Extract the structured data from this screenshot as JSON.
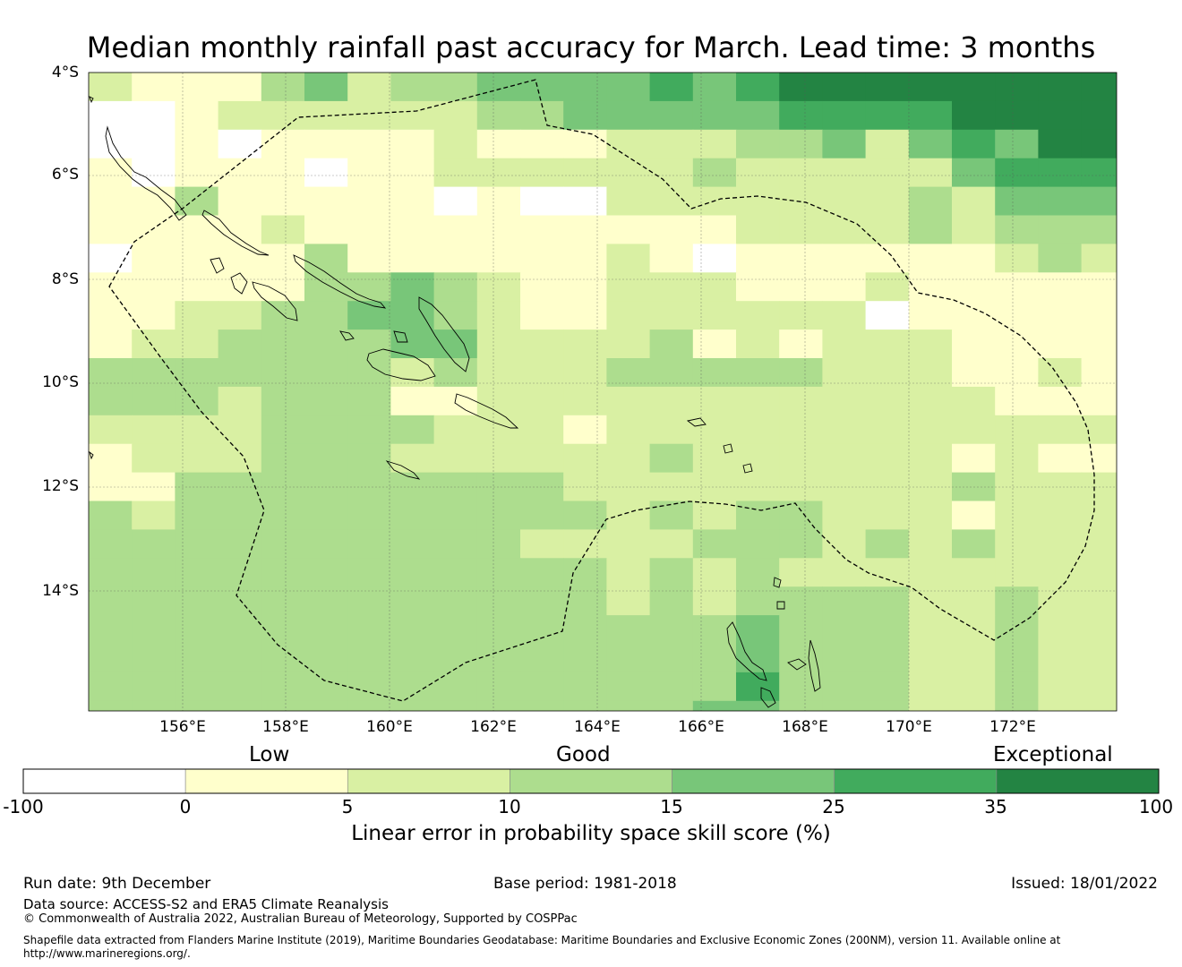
{
  "title": "Median monthly rainfall past accuracy for March. Lead time: 3 months",
  "map": {
    "lat_labels": [
      "4°S",
      "6°S",
      "8°S",
      "10°S",
      "12°S",
      "14°S"
    ],
    "lon_labels": [
      "156°E",
      "158°E",
      "160°E",
      "162°E",
      "164°E",
      "166°E",
      "168°E",
      "170°E",
      "172°E"
    ],
    "extent": {
      "lon_min": 154.2,
      "lon_max": 174.0,
      "lat_min": -16.25,
      "lat_max": -4.0
    },
    "grid_origin": {
      "lon_start": 154.2,
      "lat_start": -4.0,
      "cell_deg_lon": 0.8325,
      "cell_deg_lat": 0.551
    },
    "skill_grid": [
      [
        2,
        1,
        1,
        1,
        3,
        4,
        2,
        3,
        3,
        4,
        4,
        4,
        4,
        5,
        4,
        5,
        6,
        6,
        6,
        6,
        6,
        6,
        6,
        6
      ],
      [
        0,
        0,
        1,
        2,
        2,
        2,
        2,
        2,
        2,
        3,
        3,
        4,
        4,
        4,
        4,
        4,
        5,
        5,
        5,
        5,
        6,
        6,
        6,
        6
      ],
      [
        0,
        0,
        1,
        0,
        1,
        1,
        1,
        1,
        2,
        1,
        1,
        1,
        2,
        2,
        2,
        3,
        3,
        4,
        2,
        4,
        5,
        4,
        6,
        6
      ],
      [
        1,
        0,
        1,
        1,
        1,
        0,
        1,
        1,
        2,
        2,
        2,
        2,
        2,
        2,
        3,
        2,
        2,
        2,
        2,
        2,
        4,
        5,
        5,
        5
      ],
      [
        1,
        1,
        3,
        1,
        1,
        1,
        1,
        1,
        0,
        1,
        0,
        0,
        2,
        2,
        2,
        2,
        2,
        2,
        2,
        3,
        2,
        4,
        4,
        4
      ],
      [
        1,
        1,
        1,
        1,
        2,
        1,
        1,
        1,
        1,
        1,
        1,
        1,
        1,
        1,
        1,
        2,
        2,
        2,
        2,
        3,
        2,
        3,
        3,
        3
      ],
      [
        0,
        1,
        1,
        1,
        1,
        3,
        1,
        1,
        1,
        1,
        1,
        1,
        2,
        1,
        0,
        1,
        1,
        1,
        1,
        1,
        1,
        2,
        3,
        2
      ],
      [
        1,
        1,
        1,
        1,
        1,
        3,
        3,
        4,
        3,
        2,
        1,
        1,
        2,
        2,
        2,
        1,
        1,
        1,
        2,
        1,
        1,
        1,
        1,
        1
      ],
      [
        1,
        1,
        2,
        2,
        3,
        3,
        4,
        4,
        3,
        2,
        1,
        1,
        2,
        2,
        2,
        2,
        2,
        2,
        0,
        1,
        1,
        1,
        1,
        1
      ],
      [
        1,
        2,
        2,
        3,
        3,
        3,
        3,
        4,
        4,
        2,
        2,
        2,
        2,
        3,
        1,
        2,
        1,
        2,
        2,
        2,
        1,
        1,
        1,
        1
      ],
      [
        3,
        3,
        3,
        3,
        3,
        3,
        3,
        2,
        3,
        2,
        2,
        2,
        3,
        3,
        3,
        3,
        3,
        2,
        2,
        2,
        1,
        1,
        2,
        1
      ],
      [
        3,
        3,
        3,
        2,
        3,
        3,
        3,
        1,
        1,
        2,
        2,
        2,
        2,
        2,
        2,
        2,
        2,
        2,
        2,
        2,
        2,
        1,
        1,
        1
      ],
      [
        2,
        2,
        2,
        2,
        3,
        3,
        3,
        3,
        2,
        2,
        2,
        1,
        2,
        2,
        2,
        2,
        2,
        2,
        2,
        2,
        2,
        2,
        2,
        2
      ],
      [
        1,
        2,
        2,
        2,
        3,
        3,
        3,
        2,
        2,
        2,
        2,
        2,
        2,
        3,
        2,
        2,
        2,
        2,
        2,
        2,
        1,
        2,
        1,
        1
      ],
      [
        1,
        1,
        3,
        3,
        3,
        3,
        3,
        3,
        3,
        3,
        3,
        2,
        2,
        2,
        2,
        2,
        2,
        2,
        2,
        2,
        3,
        2,
        2,
        2
      ],
      [
        3,
        2,
        3,
        3,
        3,
        3,
        3,
        3,
        3,
        3,
        3,
        3,
        2,
        3,
        2,
        3,
        3,
        2,
        2,
        2,
        1,
        2,
        2,
        2
      ],
      [
        3,
        3,
        3,
        3,
        3,
        3,
        3,
        3,
        3,
        3,
        2,
        2,
        2,
        2,
        3,
        3,
        3,
        2,
        3,
        2,
        3,
        2,
        2,
        2
      ],
      [
        3,
        3,
        3,
        3,
        3,
        3,
        3,
        3,
        3,
        3,
        3,
        3,
        2,
        3,
        2,
        3,
        2,
        2,
        2,
        2,
        2,
        2,
        2,
        2
      ],
      [
        3,
        3,
        3,
        3,
        3,
        3,
        3,
        3,
        3,
        3,
        3,
        3,
        2,
        3,
        2,
        3,
        3,
        3,
        3,
        2,
        2,
        3,
        2,
        2
      ],
      [
        3,
        3,
        3,
        3,
        3,
        3,
        3,
        3,
        3,
        3,
        3,
        3,
        3,
        3,
        3,
        4,
        3,
        3,
        3,
        2,
        2,
        3,
        2,
        2
      ],
      [
        3,
        3,
        3,
        3,
        3,
        3,
        3,
        3,
        3,
        3,
        3,
        3,
        3,
        3,
        3,
        4,
        3,
        3,
        3,
        2,
        2,
        3,
        2,
        2
      ],
      [
        3,
        3,
        3,
        3,
        3,
        3,
        3,
        3,
        3,
        3,
        3,
        3,
        3,
        3,
        3,
        5,
        3,
        3,
        3,
        2,
        2,
        3,
        2,
        2
      ],
      [
        3,
        3,
        3,
        3,
        3,
        3,
        3,
        3,
        3,
        3,
        3,
        3,
        3,
        3,
        4,
        4,
        3,
        3,
        3,
        2,
        2,
        3,
        2,
        2
      ]
    ]
  },
  "colorbar": {
    "category_labels": [
      "Low",
      "Good",
      "Exceptional"
    ],
    "tick_labels": [
      "-100",
      "0",
      "5",
      "10",
      "15",
      "25",
      "35",
      "100"
    ],
    "colors": [
      "#ffffff",
      "#ffffcc",
      "#d9f0a3",
      "#addd8e",
      "#78c679",
      "#41ab5d",
      "#238443"
    ],
    "label": "Linear error in probability space skill score (%)"
  },
  "footer": {
    "run_date": "Run date: 9th December",
    "base_period": "Base period: 1981-2018",
    "issued": "Issued: 18/01/2022",
    "data_source": "Data source: ACCESS-S2 and ERA5 Climate Reanalysis",
    "copyright": "© Commonwealth of Australia 2022, Australian Bureau of Meteorology, Supported by COSPPac",
    "shapefile_note": "Shapefile data extracted from Flanders Marine Institute (2019), Maritime Boundaries Geodatabase: Maritime Boundaries and Exclusive Economic Zones (200NM), version 11. Available online at http://www.marineregions.org/."
  }
}
